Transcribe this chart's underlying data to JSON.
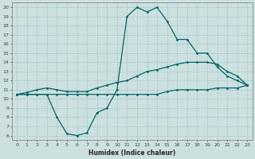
{
  "xlabel": "Humidex (Indice chaleur)",
  "bg_color": "#cce0e0",
  "line_color": "#006666",
  "grid_color": "#aacccc",
  "xlim": [
    -0.5,
    23.5
  ],
  "ylim": [
    5.5,
    20.5
  ],
  "xticks": [
    0,
    1,
    2,
    3,
    4,
    5,
    6,
    7,
    8,
    9,
    10,
    11,
    12,
    13,
    14,
    15,
    16,
    17,
    18,
    19,
    20,
    21,
    22,
    23
  ],
  "yticks": [
    6,
    7,
    8,
    9,
    10,
    11,
    12,
    13,
    14,
    15,
    16,
    17,
    18,
    19,
    20
  ],
  "curve1_x": [
    0,
    1,
    2,
    3,
    4,
    5,
    6,
    7,
    8,
    9,
    10,
    11,
    12,
    13,
    14,
    15,
    16,
    17,
    18,
    19,
    20,
    21,
    22,
    23
  ],
  "curve1_y": [
    10.5,
    10.5,
    10.5,
    10.5,
    8.0,
    6.2,
    6.0,
    6.3,
    8.5,
    9.0,
    11.0,
    19.0,
    20.0,
    19.5,
    20.0,
    18.5,
    16.5,
    16.5,
    15.0,
    15.0,
    13.5,
    12.5,
    12.0,
    11.5
  ],
  "curve2_x": [
    0,
    1,
    2,
    3,
    4,
    5,
    6,
    7,
    8,
    9,
    10,
    11,
    12,
    13,
    14,
    15,
    16,
    17,
    18,
    19,
    20,
    21,
    22,
    23
  ],
  "curve2_y": [
    10.5,
    10.7,
    11.0,
    11.2,
    11.0,
    10.8,
    10.8,
    10.8,
    11.2,
    11.5,
    11.8,
    12.0,
    12.5,
    13.0,
    13.2,
    13.5,
    13.8,
    14.0,
    14.0,
    14.0,
    13.8,
    13.0,
    12.5,
    11.5
  ],
  "curve3_x": [
    0,
    1,
    2,
    3,
    4,
    5,
    6,
    7,
    8,
    9,
    10,
    11,
    12,
    13,
    14,
    15,
    16,
    17,
    18,
    19,
    20,
    21,
    22,
    23
  ],
  "curve3_y": [
    10.5,
    10.5,
    10.5,
    10.5,
    10.5,
    10.5,
    10.5,
    10.5,
    10.5,
    10.5,
    10.5,
    10.5,
    10.5,
    10.5,
    10.5,
    10.8,
    11.0,
    11.0,
    11.0,
    11.0,
    11.2,
    11.2,
    11.2,
    11.5
  ]
}
